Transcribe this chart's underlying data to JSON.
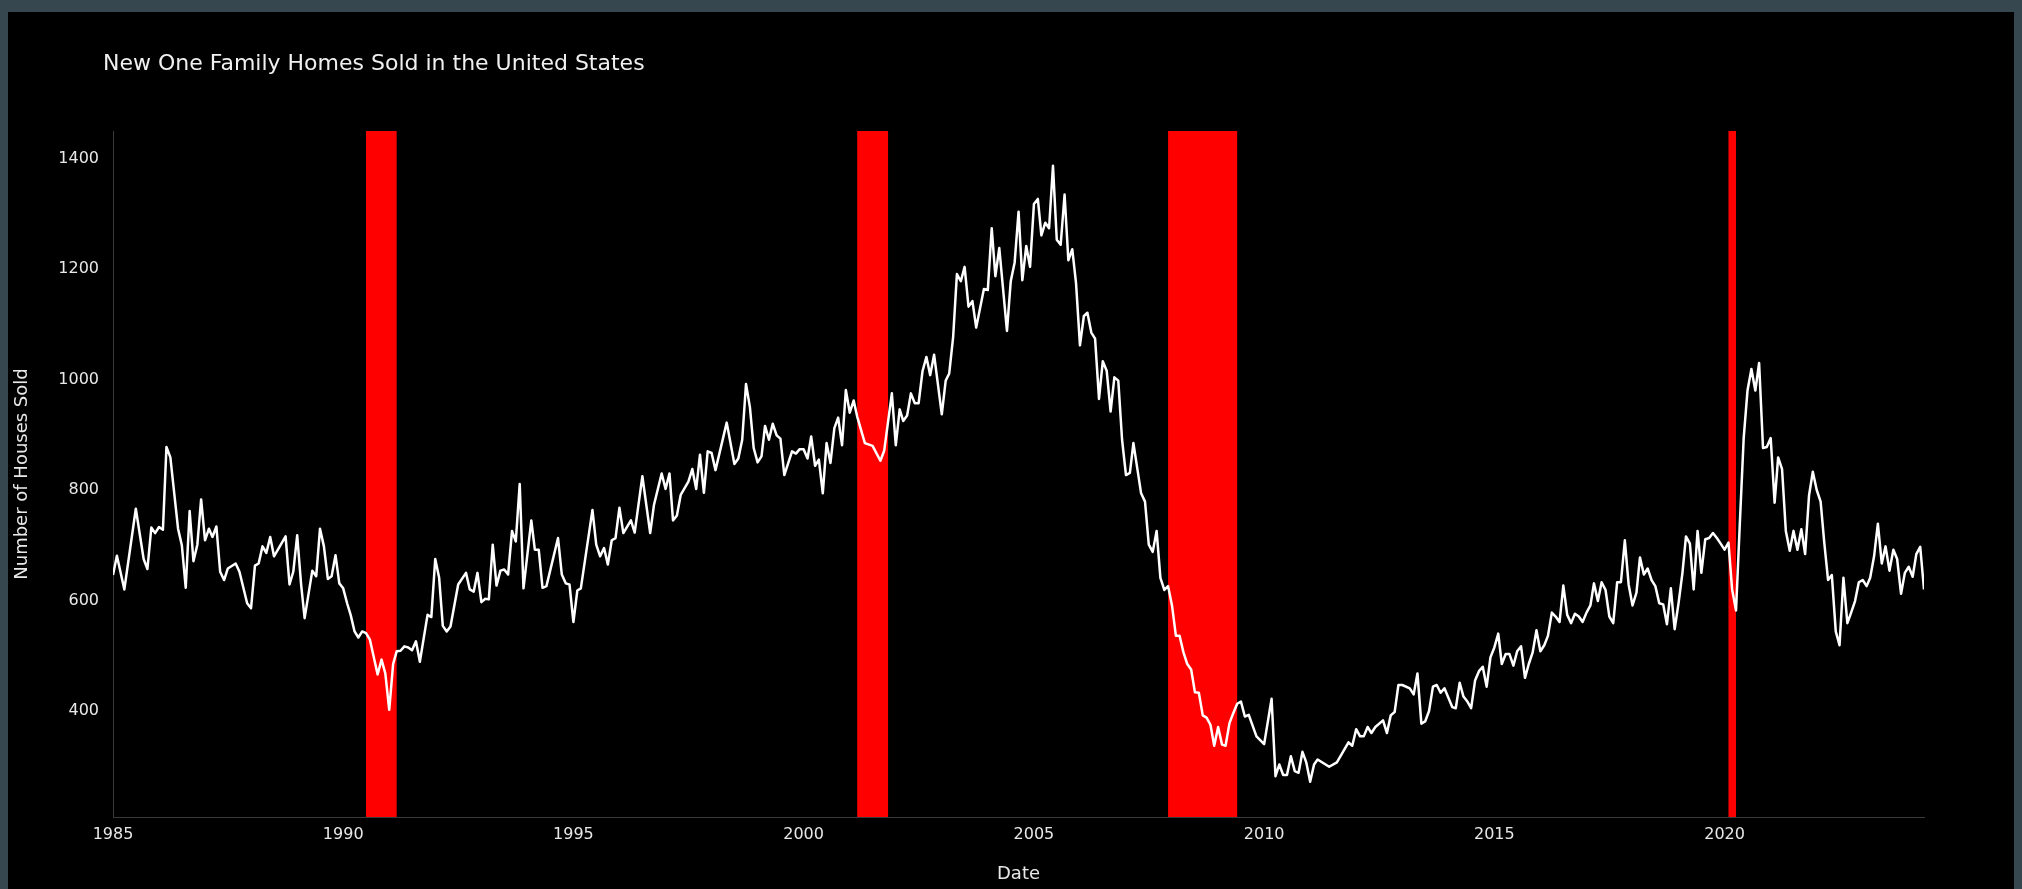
{
  "chart_data": {
    "type": "line",
    "title": "New One Family Homes Sold in the United States",
    "xlabel": "Date",
    "ylabel": "Number of Houses Sold",
    "x": [
      "1985-01",
      "1985-02",
      "1985-04",
      "1985-07",
      "1985-09",
      "1985-10",
      "1985-11",
      "1985-12",
      "1986-01",
      "1986-02",
      "1986-03",
      "1986-04",
      "1986-06",
      "1986-07",
      "1986-08",
      "1986-09",
      "1986-10",
      "1986-11",
      "1986-12",
      "1987-01",
      "1987-02",
      "1987-03",
      "1987-04",
      "1987-05",
      "1987-06",
      "1987-07",
      "1987-09",
      "1987-10",
      "1987-12",
      "1988-01",
      "1988-02",
      "1988-03",
      "1988-04",
      "1988-05",
      "1988-06",
      "1988-07",
      "1988-10",
      "1988-11",
      "1988-12",
      "1989-01",
      "1989-02",
      "1989-03",
      "1989-05",
      "1989-06",
      "1989-07",
      "1989-08",
      "1989-09",
      "1989-10",
      "1989-11",
      "1989-12",
      "1990-01",
      "1990-02",
      "1990-03",
      "1990-04",
      "1990-05",
      "1990-06",
      "1990-07",
      "1990-08",
      "1990-10",
      "1990-11",
      "1990-12",
      "1991-01",
      "1991-02",
      "1991-03",
      "1991-04",
      "1991-05",
      "1991-06",
      "1991-07",
      "1991-08",
      "1991-09",
      "1991-11",
      "1991-12",
      "1992-01",
      "1992-02",
      "1992-03",
      "1992-04",
      "1992-05",
      "1992-07",
      "1992-09",
      "1992-10",
      "1992-11",
      "1992-12",
      "1993-01",
      "1993-02",
      "1993-03",
      "1993-04",
      "1993-05",
      "1993-06",
      "1993-07",
      "1993-08",
      "1993-09",
      "1993-10",
      "1993-11",
      "1993-12",
      "1994-02",
      "1994-03",
      "1994-04",
      "1994-05",
      "1994-06",
      "1994-09",
      "1994-10",
      "1994-11",
      "1994-12",
      "1995-01",
      "1995-02",
      "1995-03",
      "1995-06",
      "1995-07",
      "1995-08",
      "1995-09",
      "1995-10",
      "1995-11",
      "1995-12",
      "1996-01",
      "1996-02",
      "1996-04",
      "1996-05",
      "1996-07",
      "1996-09",
      "1996-10",
      "1996-12",
      "1997-01",
      "1997-02",
      "1997-03",
      "1997-04",
      "1997-05",
      "1997-07",
      "1997-08",
      "1997-09",
      "1997-10",
      "1997-11",
      "1997-12",
      "1998-01",
      "1998-02",
      "1998-05",
      "1998-07",
      "1998-08",
      "1998-09",
      "1998-10",
      "1998-11",
      "1998-12",
      "1999-01",
      "1999-02",
      "1999-03",
      "1999-04",
      "1999-05",
      "1999-06",
      "1999-07",
      "1999-08",
      "1999-10",
      "1999-11",
      "1999-12",
      "2000-01",
      "2000-02",
      "2000-03",
      "2000-04",
      "2000-05",
      "2000-06",
      "2000-07",
      "2000-08",
      "2000-09",
      "2000-10",
      "2000-11",
      "2000-12",
      "2001-01",
      "2001-02",
      "2001-03",
      "2001-05",
      "2001-07",
      "2001-09",
      "2001-10",
      "2001-12",
      "2002-01",
      "2002-02",
      "2002-03",
      "2002-04",
      "2002-05",
      "2002-06",
      "2002-07",
      "2002-08",
      "2002-09",
      "2002-10",
      "2002-11",
      "2003-01",
      "2003-02",
      "2003-03",
      "2003-04",
      "2003-05",
      "2003-06",
      "2003-07",
      "2003-08",
      "2003-09",
      "2003-10",
      "2003-12",
      "2004-01",
      "2004-02",
      "2004-03",
      "2004-04",
      "2004-06",
      "2004-07",
      "2004-08",
      "2004-09",
      "2004-10",
      "2004-11",
      "2004-12",
      "2005-01",
      "2005-02",
      "2005-03",
      "2005-04",
      "2005-05",
      "2005-06",
      "2005-07",
      "2005-08",
      "2005-09",
      "2005-10",
      "2005-11",
      "2005-12",
      "2006-01",
      "2006-02",
      "2006-03",
      "2006-04",
      "2006-05",
      "2006-06",
      "2006-07",
      "2006-08",
      "2006-09",
      "2006-10",
      "2006-11",
      "2006-12",
      "2007-01",
      "2007-02",
      "2007-03",
      "2007-05",
      "2007-06",
      "2007-07",
      "2007-08",
      "2007-09",
      "2007-10",
      "2007-11",
      "2007-12",
      "2008-01",
      "2008-02",
      "2008-03",
      "2008-04",
      "2008-05",
      "2008-06",
      "2008-07",
      "2008-08",
      "2008-09",
      "2008-10",
      "2008-11",
      "2008-12",
      "2009-01",
      "2009-02",
      "2009-03",
      "2009-04",
      "2009-05",
      "2009-06",
      "2009-07",
      "2009-08",
      "2009-09",
      "2009-11",
      "2010-01",
      "2010-03",
      "2010-04",
      "2010-05",
      "2010-06",
      "2010-07",
      "2010-08",
      "2010-09",
      "2010-10",
      "2010-11",
      "2010-12",
      "2011-01",
      "2011-02",
      "2011-03",
      "2011-06",
      "2011-08",
      "2011-11",
      "2011-12",
      "2012-01",
      "2012-02",
      "2012-03",
      "2012-04",
      "2012-05",
      "2012-06",
      "2012-08",
      "2012-09",
      "2012-10",
      "2012-11",
      "2012-12",
      "2013-01",
      "2013-03",
      "2013-04",
      "2013-05",
      "2013-06",
      "2013-07",
      "2013-08",
      "2013-09",
      "2013-10",
      "2013-11",
      "2013-12",
      "2014-02",
      "2014-03",
      "2014-04",
      "2014-05",
      "2014-06",
      "2014-07",
      "2014-08",
      "2014-09",
      "2014-10",
      "2014-11",
      "2014-12",
      "2015-01",
      "2015-02",
      "2015-03",
      "2015-04",
      "2015-05",
      "2015-06",
      "2015-07",
      "2015-08",
      "2015-09",
      "2015-10",
      "2015-11",
      "2015-12",
      "2016-01",
      "2016-02",
      "2016-03",
      "2016-04",
      "2016-05",
      "2016-06",
      "2016-07",
      "2016-08",
      "2016-09",
      "2016-10",
      "2016-11",
      "2016-12",
      "2017-01",
      "2017-02",
      "2017-03",
      "2017-04",
      "2017-05",
      "2017-06",
      "2017-07",
      "2017-08",
      "2017-09",
      "2017-10",
      "2017-11",
      "2017-12",
      "2018-01",
      "2018-02",
      "2018-03",
      "2018-04",
      "2018-05",
      "2018-06",
      "2018-07",
      "2018-08",
      "2018-09",
      "2018-10",
      "2018-11",
      "2018-12",
      "2019-01",
      "2019-02",
      "2019-03",
      "2019-04",
      "2019-05",
      "2019-06",
      "2019-07",
      "2019-08",
      "2019-09",
      "2019-10",
      "2019-11",
      "2019-12",
      "2020-01",
      "2020-02",
      "2020-03",
      "2020-04",
      "2020-05",
      "2020-06",
      "2020-07",
      "2020-08",
      "2020-09",
      "2020-10",
      "2020-11",
      "2020-12",
      "2021-01",
      "2021-02",
      "2021-03",
      "2021-04",
      "2021-05",
      "2021-06",
      "2021-07",
      "2021-08",
      "2021-09",
      "2021-10",
      "2021-11",
      "2021-12",
      "2022-01",
      "2022-02",
      "2022-03",
      "2022-04",
      "2022-05",
      "2022-06",
      "2022-07",
      "2022-08",
      "2022-09",
      "2022-10",
      "2022-11",
      "2022-12",
      "2023-01",
      "2023-02",
      "2023-03",
      "2023-04",
      "2023-05",
      "2023-06",
      "2023-07",
      "2023-08",
      "2023-09",
      "2023-10",
      "2023-11",
      "2023-12",
      "2024-01",
      "2024-02",
      "2024-03",
      "2024-04",
      "2024-05"
    ],
    "series": [
      {
        "color": "#ffffff",
        "values": [
          646,
          681,
          620,
          766,
          675,
          657,
          732,
          722,
          733,
          728,
          878,
          859,
          730,
          700,
          623,
          762,
          671,
          701,
          783,
          709,
          730,
          715,
          734,
          652,
          637,
          658,
          667,
          652,
          595,
          586,
          663,
          667,
          698,
          686,
          715,
          680,
          716,
          629,
          652,
          718,
          629,
          568,
          654,
          644,
          730,
          698,
          639,
          644,
          682,
          631,
          622,
          595,
          574,
          544,
          533,
          544,
          541,
          529,
          466,
          493,
          468,
          402,
          485,
          508,
          509,
          517,
          515,
          510,
          526,
          489,
          574,
          570,
          675,
          641,
          554,
          544,
          553,
          629,
          650,
          620,
          616,
          650,
          597,
          603,
          602,
          701,
          627,
          654,
          656,
          647,
          726,
          707,
          811,
          622,
          745,
          692,
          692,
          623,
          626,
          713,
          647,
          631,
          629,
          561,
          618,
          622,
          764,
          701,
          680,
          695,
          665,
          709,
          713,
          768,
          722,
          745,
          723,
          825,
          722,
          773,
          830,
          802,
          830,
          745,
          754,
          791,
          815,
          838,
          802,
          864,
          795,
          870,
          867,
          836,
          922,
          847,
          857,
          891,
          992,
          950,
          876,
          850,
          861,
          916,
          891,
          920,
          899,
          893,
          827,
          870,
          866,
          874,
          874,
          857,
          897,
          844,
          855,
          794,
          885,
          849,
          912,
          931,
          881,
          981,
          940,
          962,
          933,
          885,
          880,
          853,
          871,
          975,
          881,
          946,
          925,
          935,
          975,
          957,
          957,
          1015,
          1041,
          1008,
          1045,
          937,
          998,
          1011,
          1077,
          1191,
          1178,
          1204,
          1132,
          1142,
          1094,
          1164,
          1162,
          1274,
          1187,
          1238,
          1088,
          1178,
          1212,
          1304,
          1180,
          1242,
          1204,
          1318,
          1327,
          1261,
          1284,
          1274,
          1387,
          1253,
          1244,
          1335,
          1216,
          1236,
          1174,
          1062,
          1115,
          1121,
          1085,
          1074,
          965,
          1033,
          1016,
          942,
          1004,
          998,
          891,
          827,
          831,
          885,
          794,
          779,
          701,
          688,
          726,
          641,
          619,
          626,
          591,
          536,
          536,
          506,
          485,
          475,
          434,
          433,
          392,
          388,
          375,
          337,
          371,
          339,
          337,
          378,
          396,
          413,
          417,
          390,
          393,
          354,
          340,
          422,
          282,
          303,
          284,
          284,
          318,
          291,
          288,
          326,
          307,
          272,
          303,
          312,
          299,
          307,
          343,
          337,
          367,
          354,
          354,
          371,
          360,
          371,
          383,
          360,
          392,
          398,
          447,
          447,
          441,
          430,
          468,
          377,
          381,
          400,
          444,
          447,
          433,
          441,
          407,
          405,
          451,
          426,
          417,
          405,
          455,
          472,
          480,
          444,
          497,
          515,
          540,
          485,
          503,
          503,
          482,
          508,
          517,
          460,
          485,
          506,
          546,
          508,
          519,
          536,
          578,
          571,
          561,
          627,
          574,
          559,
          576,
          571,
          561,
          578,
          591,
          631,
          599,
          633,
          619,
          571,
          559,
          633,
          633,
          709,
          629,
          591,
          614,
          678,
          647,
          658,
          637,
          626,
          595,
          593,
          557,
          622,
          548,
          595,
          650,
          716,
          703,
          620,
          726,
          650,
          711,
          713,
          722,
          713,
          703,
          692,
          705,
          620,
          582,
          739,
          895,
          980,
          1019,
          980,
          1030,
          876,
          878,
          894,
          777,
          859,
          838,
          726,
          690,
          726,
          692,
          729,
          684,
          790,
          833,
          800,
          779,
          707,
          637,
          646,
          544,
          519,
          641,
          559,
          578,
          599,
          633,
          637,
          626,
          641,
          680,
          739,
          667,
          698,
          654,
          692,
          675,
          612,
          650,
          661,
          643,
          684,
          697,
          620
        ]
      }
    ],
    "xticks": [
      {
        "value": "1985",
        "label": "1985"
      },
      {
        "value": "1990",
        "label": "1990"
      },
      {
        "value": "1995",
        "label": "1995"
      },
      {
        "value": "2000",
        "label": "2000"
      },
      {
        "value": "2005",
        "label": "2005"
      },
      {
        "value": "2010",
        "label": "2010"
      },
      {
        "value": "2015",
        "label": "2015"
      },
      {
        "value": "2020",
        "label": "2020"
      }
    ],
    "xlim": [
      "1985-01",
      "2024-05"
    ],
    "ylim": [
      208,
      1450
    ],
    "yticks": [
      400,
      600,
      800,
      1000,
      1200,
      1400
    ],
    "bands": [
      {
        "axis": "x",
        "from": "1990-07",
        "to": "1991-03",
        "color": "#ff0000"
      },
      {
        "axis": "x",
        "from": "2001-03",
        "to": "2001-11",
        "color": "#ff0000"
      },
      {
        "axis": "x",
        "from": "2007-12",
        "to": "2009-06",
        "color": "#ff0000"
      },
      {
        "axis": "x",
        "from": "2020-02",
        "to": "2020-04",
        "color": "#ff0000"
      }
    ]
  }
}
